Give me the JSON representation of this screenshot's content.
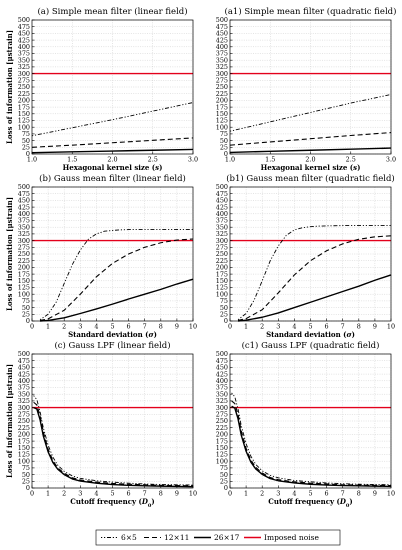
{
  "colors": {
    "noise": "#e3001b",
    "series": "#000000",
    "frame": "#000000"
  },
  "legend": {
    "items": [
      {
        "label": "6×5",
        "dash": "1.2,1.8,1.2,1.8,4,1.8",
        "width": 0.9
      },
      {
        "label": "12×11",
        "dash": "5,3",
        "width": 1.1
      },
      {
        "label": "26×17",
        "dash": "",
        "width": 1.4
      },
      {
        "label": "Imposed noise",
        "dash": "",
        "width": 1.4,
        "color": "#e3001b"
      }
    ]
  },
  "chart_data": [
    {
      "type": "line",
      "title": "(a) Simple mean filter (linear field)",
      "xlabel": "Hexagonal kernel size (s)",
      "ylabel": "Loss of information [μstrain]",
      "xlim": [
        1.0,
        3.0
      ],
      "ylim": [
        0,
        500
      ],
      "xticks": [
        1.0,
        1.5,
        2.0,
        2.5,
        3.0
      ],
      "xtick_labels": [
        "1.0",
        "1.5",
        "2.0",
        "2.5",
        "3.0"
      ],
      "yticks": [
        0,
        25,
        50,
        75,
        100,
        125,
        150,
        175,
        200,
        225,
        250,
        275,
        300,
        325,
        350,
        375,
        400,
        425,
        450,
        475,
        500
      ],
      "grid": true,
      "noise_level": 300,
      "series": [
        {
          "name": "6×5",
          "x": [
            1.0,
            1.5,
            2.0,
            2.5,
            3.0
          ],
          "y": [
            68,
            98,
            128,
            160,
            192
          ]
        },
        {
          "name": "12×11",
          "x": [
            1.0,
            1.5,
            2.0,
            2.5,
            3.0
          ],
          "y": [
            25,
            33,
            42,
            51,
            60
          ]
        },
        {
          "name": "26×17",
          "x": [
            1.0,
            1.5,
            2.0,
            2.5,
            3.0
          ],
          "y": [
            5,
            8,
            11,
            14,
            17
          ]
        }
      ]
    },
    {
      "type": "line",
      "title": "(a1) Simple mean filter (quadratic field)",
      "xlabel": "Hexagonal kernel size (s)",
      "ylabel": "",
      "xlim": [
        1.0,
        3.0
      ],
      "ylim": [
        0,
        500
      ],
      "xticks": [
        1.0,
        1.5,
        2.0,
        2.5,
        3.0
      ],
      "xtick_labels": [
        "1.0",
        "1.5",
        "2.0",
        "2.5",
        "3.0"
      ],
      "yticks": [
        0,
        25,
        50,
        75,
        100,
        125,
        150,
        175,
        200,
        225,
        250,
        275,
        300,
        325,
        350,
        375,
        400,
        425,
        450,
        475,
        500
      ],
      "grid": true,
      "noise_level": 300,
      "series": [
        {
          "name": "6×5",
          "x": [
            1.0,
            1.5,
            2.0,
            2.5,
            3.0
          ],
          "y": [
            85,
            120,
            155,
            190,
            222
          ]
        },
        {
          "name": "12×11",
          "x": [
            1.0,
            1.5,
            2.0,
            2.5,
            3.0
          ],
          "y": [
            33,
            45,
            57,
            69,
            80
          ]
        },
        {
          "name": "26×17",
          "x": [
            1.0,
            1.5,
            2.0,
            2.5,
            3.0
          ],
          "y": [
            6,
            10,
            14,
            18,
            22
          ]
        }
      ]
    },
    {
      "type": "line",
      "title": "(b) Gauss mean filter (linear field)",
      "xlabel": "Standard deviation (σ)",
      "ylabel": "Loss of information [μstrain]",
      "xlim": [
        0,
        10
      ],
      "ylim": [
        0,
        500
      ],
      "xticks": [
        0,
        1,
        2,
        3,
        4,
        5,
        6,
        7,
        8,
        9,
        10
      ],
      "xtick_labels": [
        "0",
        "1",
        "2",
        "3",
        "4",
        "5",
        "6",
        "7",
        "8",
        "9",
        "10"
      ],
      "yticks": [
        0,
        25,
        50,
        75,
        100,
        125,
        150,
        175,
        200,
        225,
        250,
        275,
        300,
        325,
        350,
        375,
        400,
        425,
        450,
        475,
        500
      ],
      "grid": true,
      "noise_level": 300,
      "series": [
        {
          "name": "6×5",
          "x": [
            0.5,
            1,
            1.5,
            2,
            2.5,
            3,
            3.5,
            4,
            4.5,
            5,
            5.5,
            6,
            7,
            8,
            9,
            10
          ],
          "y": [
            5,
            25,
            70,
            140,
            210,
            265,
            305,
            325,
            335,
            338,
            340,
            341,
            341,
            341,
            341,
            341
          ]
        },
        {
          "name": "12×11",
          "x": [
            0.5,
            1,
            2,
            3,
            4,
            5,
            6,
            7,
            8,
            9,
            10
          ],
          "y": [
            2,
            8,
            40,
            100,
            165,
            215,
            250,
            275,
            292,
            302,
            306
          ]
        },
        {
          "name": "26×17",
          "x": [
            0.5,
            1,
            2,
            3,
            4,
            5,
            6,
            7,
            8,
            9,
            10
          ],
          "y": [
            0,
            2,
            12,
            28,
            45,
            63,
            82,
            100,
            118,
            138,
            156
          ]
        }
      ]
    },
    {
      "type": "line",
      "title": "(b1) Gauss mean filter (quadratic field)",
      "xlabel": "Standard deviation (σ)",
      "ylabel": "",
      "xlim": [
        0,
        10
      ],
      "ylim": [
        0,
        500
      ],
      "xticks": [
        0,
        1,
        2,
        3,
        4,
        5,
        6,
        7,
        8,
        9,
        10
      ],
      "xtick_labels": [
        "0",
        "1",
        "2",
        "3",
        "4",
        "5",
        "6",
        "7",
        "8",
        "9",
        "10"
      ],
      "yticks": [
        0,
        25,
        50,
        75,
        100,
        125,
        150,
        175,
        200,
        225,
        250,
        275,
        300,
        325,
        350,
        375,
        400,
        425,
        450,
        475,
        500
      ],
      "grid": true,
      "noise_level": 300,
      "series": [
        {
          "name": "6×5",
          "x": [
            0.5,
            1,
            1.5,
            2,
            2.5,
            3,
            3.5,
            4,
            4.5,
            5,
            5.5,
            6,
            7,
            8,
            9,
            10
          ],
          "y": [
            5,
            28,
            78,
            150,
            225,
            280,
            320,
            340,
            348,
            352,
            354,
            355,
            356,
            356,
            356,
            356
          ]
        },
        {
          "name": "12×11",
          "x": [
            0.5,
            1,
            2,
            3,
            4,
            5,
            6,
            7,
            8,
            9,
            10
          ],
          "y": [
            2,
            9,
            42,
            105,
            172,
            225,
            262,
            288,
            305,
            314,
            318
          ]
        },
        {
          "name": "26×17",
          "x": [
            0.5,
            1,
            2,
            3,
            4,
            5,
            6,
            7,
            8,
            9,
            10
          ],
          "y": [
            0,
            3,
            14,
            30,
            50,
            70,
            90,
            110,
            130,
            152,
            172
          ]
        }
      ]
    },
    {
      "type": "line",
      "title": "(c) Gauss LPF (linear field)",
      "xlabel": "Cutoff frequency (D0)",
      "ylabel": "Loss of information [μstrain]",
      "xlim": [
        0,
        10
      ],
      "ylim": [
        0,
        500
      ],
      "xticks": [
        0,
        1,
        2,
        3,
        4,
        5,
        6,
        7,
        8,
        9,
        10
      ],
      "xtick_labels": [
        "0",
        "1",
        "2",
        "3",
        "4",
        "5",
        "6",
        "7",
        "8",
        "9",
        "10"
      ],
      "yticks": [
        0,
        25,
        50,
        75,
        100,
        125,
        150,
        175,
        200,
        225,
        250,
        275,
        300,
        325,
        350,
        375,
        400,
        425,
        450,
        475,
        500
      ],
      "grid": true,
      "noise_level": 300,
      "series": [
        {
          "name": "6×5",
          "x": [
            0.1,
            0.3,
            0.5,
            0.7,
            1,
            1.3,
            1.6,
            2,
            2.5,
            3,
            4,
            5,
            6,
            7,
            8,
            9,
            10
          ],
          "y": [
            345,
            330,
            285,
            225,
            160,
            115,
            85,
            62,
            45,
            36,
            27,
            22,
            18,
            15,
            13,
            12,
            11
          ]
        },
        {
          "name": "12×11",
          "x": [
            0.1,
            0.3,
            0.5,
            0.7,
            1,
            1.3,
            1.6,
            2,
            2.5,
            3,
            4,
            5,
            6,
            7,
            8,
            9,
            10
          ],
          "y": [
            320,
            310,
            270,
            210,
            145,
            102,
            75,
            55,
            38,
            30,
            22,
            17,
            14,
            12,
            10,
            9,
            8
          ]
        },
        {
          "name": "26×17",
          "x": [
            0.1,
            0.3,
            0.5,
            0.7,
            1,
            1.3,
            1.6,
            2,
            2.5,
            3,
            4,
            5,
            6,
            7,
            8,
            9,
            10
          ],
          "y": [
            300,
            295,
            255,
            195,
            135,
            95,
            70,
            50,
            34,
            26,
            18,
            13,
            10,
            8,
            7,
            6,
            5
          ]
        }
      ]
    },
    {
      "type": "line",
      "title": "(c1) Gauss LPF (quadratic field)",
      "xlabel": "Cutoff frequency (D0)",
      "ylabel": "",
      "xlim": [
        0,
        10
      ],
      "ylim": [
        0,
        500
      ],
      "xticks": [
        0,
        1,
        2,
        3,
        4,
        5,
        6,
        7,
        8,
        9,
        10
      ],
      "xtick_labels": [
        "0",
        "1",
        "2",
        "3",
        "4",
        "5",
        "6",
        "7",
        "8",
        "9",
        "10"
      ],
      "yticks": [
        0,
        25,
        50,
        75,
        100,
        125,
        150,
        175,
        200,
        225,
        250,
        275,
        300,
        325,
        350,
        375,
        400,
        425,
        450,
        475,
        500
      ],
      "grid": true,
      "noise_level": 300,
      "series": [
        {
          "name": "6×5",
          "x": [
            0.1,
            0.3,
            0.5,
            0.7,
            1,
            1.3,
            1.6,
            2,
            2.5,
            3,
            4,
            5,
            6,
            7,
            8,
            9,
            10
          ],
          "y": [
            355,
            340,
            295,
            232,
            165,
            118,
            88,
            64,
            47,
            38,
            28,
            23,
            19,
            16,
            14,
            13,
            12
          ]
        },
        {
          "name": "12×11",
          "x": [
            0.1,
            0.3,
            0.5,
            0.7,
            1,
            1.3,
            1.6,
            2,
            2.5,
            3,
            4,
            5,
            6,
            7,
            8,
            9,
            10
          ],
          "y": [
            325,
            315,
            275,
            213,
            148,
            104,
            77,
            56,
            39,
            31,
            23,
            18,
            15,
            12,
            11,
            10,
            9
          ]
        },
        {
          "name": "26×17",
          "x": [
            0.1,
            0.3,
            0.5,
            0.7,
            1,
            1.3,
            1.6,
            2,
            2.5,
            3,
            4,
            5,
            6,
            7,
            8,
            9,
            10
          ],
          "y": [
            305,
            298,
            258,
            197,
            137,
            96,
            71,
            51,
            35,
            27,
            19,
            14,
            11,
            9,
            8,
            7,
            6
          ]
        }
      ]
    }
  ]
}
